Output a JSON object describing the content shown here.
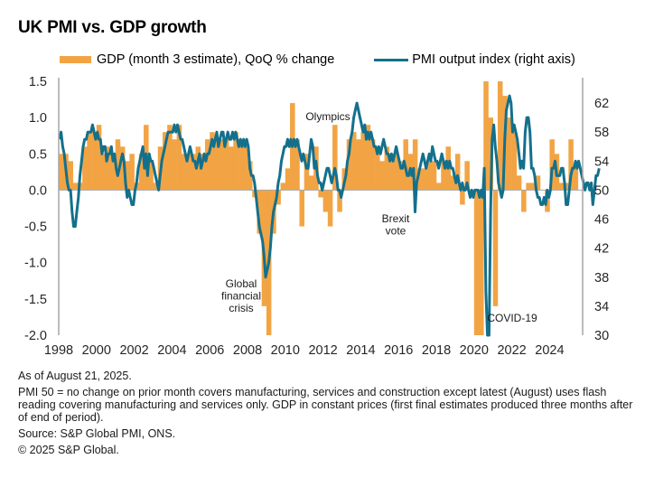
{
  "chart_data": {
    "type": "bar+line",
    "title": "UK PMI vs. GDP growth",
    "legend": [
      {
        "name": "GDP (month 3 estimate), QoQ % change",
        "kind": "bar",
        "color": "#F2A444"
      },
      {
        "name": "PMI output index (right axis)",
        "kind": "line",
        "color": "#13708C"
      }
    ],
    "legend_position": "top",
    "x_tick_labels": [
      "1998",
      "2000",
      "2002",
      "2004",
      "2006",
      "2008",
      "2010",
      "2012",
      "2014",
      "2016",
      "2018",
      "2020",
      "2022",
      "2024"
    ],
    "x_range": [
      1998,
      2025.75
    ],
    "y_left": {
      "range": [
        -2.0,
        1.5
      ],
      "ticks": [
        "1.5",
        "1.0",
        "0.5",
        "0.0",
        "-0.5",
        "-1.0",
        "-1.5",
        "-2.0"
      ],
      "values": [
        1.5,
        1.0,
        0.5,
        0.0,
        -0.5,
        -1.0,
        -1.5,
        -2.0
      ]
    },
    "y_right": {
      "range": [
        30,
        65
      ],
      "ticks": [
        "62",
        "58",
        "54",
        "50",
        "46",
        "42",
        "38",
        "34",
        "30"
      ],
      "values": [
        62,
        58,
        54,
        50,
        46,
        42,
        38,
        34,
        30
      ]
    },
    "gdp_series": {
      "name": "GDP (month 3 estimate), QoQ % change",
      "start": "1998Q1",
      "frequency": "quarterly",
      "values": [
        0.5,
        0.5,
        0.4,
        0.1,
        0.1,
        0.6,
        0.8,
        0.8,
        0.9,
        0.5,
        0.6,
        0.5,
        0.7,
        0.6,
        0.4,
        0.5,
        0.1,
        0.5,
        0.9,
        0.4,
        0.1,
        0.6,
        0.8,
        0.9,
        0.7,
        0.9,
        0.5,
        0.5,
        0.5,
        0.6,
        0.5,
        0.7,
        0.8,
        0.7,
        0.7,
        0.7,
        0.6,
        0.8,
        0.7,
        0.6,
        0.4,
        -0.1,
        -0.6,
        -1.6,
        -2.0,
        -0.6,
        -0.2,
        0.1,
        0.3,
        1.2,
        0.7,
        -0.5,
        0.5,
        0.2,
        0.6,
        -0.1,
        -0.3,
        -0.5,
        0.9,
        -0.3,
        0.3,
        0.7,
        0.8,
        0.7,
        0.8,
        0.9,
        0.7,
        0.6,
        0.4,
        0.6,
        0.5,
        0.5,
        0.4,
        0.7,
        0.5,
        0.7,
        0.3,
        0.3,
        0.4,
        0.4,
        0.1,
        0.4,
        0.6,
        0.2,
        0.5,
        -0.2,
        0.4,
        0.0,
        -2.0,
        -2.0,
        1.5,
        1.0,
        -1.6,
        1.5,
        1.3,
        1.0,
        0.8,
        0.2,
        -0.3,
        0.1,
        0.1,
        0.2,
        0.0,
        -0.3,
        0.7,
        0.5,
        0.1,
        0.1,
        0.7,
        0.3
      ]
    },
    "pmi_series": {
      "name": "PMI output index (right axis)",
      "start": "1998-01",
      "frequency": "monthly",
      "values": [
        57,
        58,
        56,
        55,
        53,
        51,
        50,
        50,
        47,
        45,
        45,
        47,
        49,
        52,
        54,
        56,
        57,
        57,
        58,
        58,
        58,
        59,
        58,
        57,
        58,
        57,
        57,
        55,
        56,
        56,
        54,
        55,
        55,
        56,
        54,
        55,
        53,
        52,
        53,
        54,
        55,
        54,
        51,
        49,
        50,
        49,
        48,
        48,
        50,
        51,
        53,
        54,
        55,
        56,
        53,
        55,
        52,
        55,
        54,
        54,
        53,
        52,
        51,
        50,
        52,
        54,
        55,
        56,
        57,
        58,
        58,
        58,
        58,
        59,
        58,
        59,
        58,
        57,
        57,
        56,
        55,
        54,
        55,
        56,
        55,
        54,
        54,
        53,
        54,
        55,
        53,
        54,
        55,
        54,
        55,
        55,
        56,
        57,
        56,
        57,
        58,
        56,
        57,
        58,
        58,
        56,
        57,
        58,
        57,
        57,
        58,
        57,
        58,
        57,
        56,
        57,
        56,
        57,
        56,
        57,
        56,
        53,
        52,
        52,
        51,
        49,
        47,
        45,
        44,
        43,
        41,
        38,
        39,
        40,
        42,
        45,
        47,
        48,
        49,
        51,
        52,
        54,
        55,
        56,
        56,
        57,
        56,
        57,
        56,
        57,
        56,
        57,
        56,
        55,
        54,
        55,
        54,
        53,
        53,
        55,
        57,
        56,
        53,
        54,
        52,
        51,
        51,
        50,
        51,
        52,
        53,
        53,
        52,
        51,
        52,
        53,
        52,
        50,
        50,
        49,
        50,
        51,
        52,
        54,
        55,
        57,
        58,
        60,
        61,
        62,
        61,
        60,
        59,
        58,
        59,
        57,
        58,
        57,
        58,
        57,
        56,
        56,
        55,
        56,
        55,
        56,
        57,
        56,
        55,
        55,
        54,
        55,
        54,
        55,
        56,
        55,
        54,
        53,
        53,
        54,
        53,
        52,
        52,
        53,
        52,
        53,
        47,
        51,
        52,
        53,
        54,
        55,
        54,
        53,
        54,
        55,
        54,
        56,
        55,
        54,
        54,
        53,
        54,
        55,
        54,
        53,
        54,
        53,
        54,
        53,
        53,
        52,
        51,
        52,
        51,
        50,
        51,
        50,
        50,
        51,
        50,
        49,
        50,
        49,
        50,
        50,
        50,
        49,
        50,
        49,
        53,
        36,
        13,
        30,
        47,
        57,
        59,
        56,
        54,
        51,
        50,
        49,
        50,
        57,
        61,
        62,
        63,
        62,
        58,
        59,
        58,
        57,
        55,
        53,
        54,
        53,
        58,
        60,
        60,
        58,
        53,
        53,
        52,
        50,
        49,
        49,
        48,
        48,
        49,
        48,
        50,
        49,
        50,
        53,
        53,
        54,
        52,
        52,
        52,
        53,
        53,
        51,
        48,
        48,
        50,
        52,
        53,
        53,
        54,
        53,
        54,
        53,
        52,
        51,
        50,
        51,
        51,
        50,
        51,
        48,
        50,
        52,
        52,
        53
      ]
    },
    "annotations": [
      {
        "text": "Global financial crisis",
        "at": "2009Q1"
      },
      {
        "text": "Olympics",
        "at": "2012Q3"
      },
      {
        "text": "Brexit vote",
        "at": "2016Q2"
      },
      {
        "text": "COVID-19",
        "at": "2020Q2"
      }
    ],
    "grid": false
  },
  "notes": {
    "as_of": "As of August 21, 2025.",
    "pmi_note": "PMI 50 = no change on prior month covers manufacturing, services and construction except latest (August) uses flash reading covering manufacturing and services only. GDP in constant prices (first final estimates produced three months after of end of period).",
    "source": "Source: S&P Global PMI, ONS.",
    "copyright": "© 2025 S&P Global."
  }
}
